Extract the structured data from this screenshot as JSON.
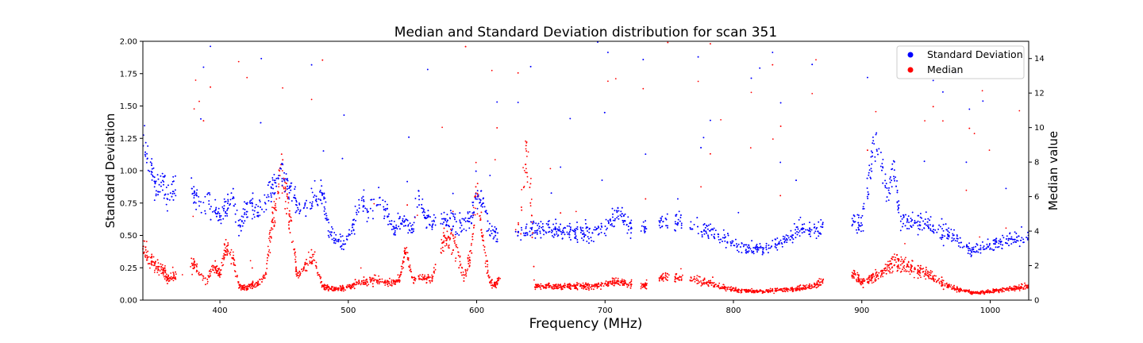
{
  "chart_data": {
    "type": "scatter",
    "title": "Median and Standard Deviation distribution for scan 351",
    "xlabel": "Frequency (MHz)",
    "ylabel_left": "Standard Deviation",
    "ylabel_right": "Median value",
    "xlim": [
      340,
      1030
    ],
    "ylim_left": [
      0,
      2.0
    ],
    "ylim_right": [
      0,
      15
    ],
    "x_ticks": [
      "400",
      "500",
      "600",
      "700",
      "800",
      "900",
      "1000"
    ],
    "y_left_ticks": [
      "0.00",
      "0.25",
      "0.50",
      "0.75",
      "1.00",
      "1.25",
      "1.50",
      "1.75",
      "2.00"
    ],
    "y_right_ticks": [
      "0",
      "2",
      "4",
      "6",
      "8",
      "10",
      "12",
      "14"
    ],
    "grid": false,
    "legend_position": "upper right",
    "series": [
      {
        "name": "Standard Deviation",
        "axis": "left",
        "color": "#0000ff",
        "marker": "dot",
        "profile": [
          [
            340,
            1.25
          ],
          [
            345,
            1.1
          ],
          [
            350,
            0.85
          ],
          [
            355,
            0.9
          ],
          [
            360,
            0.8
          ],
          [
            370,
            0.95
          ],
          [
            380,
            0.78
          ],
          [
            390,
            0.75
          ],
          [
            395,
            0.7
          ],
          [
            400,
            0.65
          ],
          [
            405,
            0.68
          ],
          [
            410,
            0.8
          ],
          [
            415,
            0.55
          ],
          [
            420,
            0.7
          ],
          [
            425,
            0.72
          ],
          [
            430,
            0.7
          ],
          [
            440,
            0.85
          ],
          [
            445,
            0.98
          ],
          [
            450,
            0.95
          ],
          [
            455,
            0.85
          ],
          [
            460,
            0.75
          ],
          [
            465,
            0.7
          ],
          [
            470,
            0.75
          ],
          [
            475,
            0.78
          ],
          [
            480,
            0.85
          ],
          [
            485,
            0.55
          ],
          [
            490,
            0.45
          ],
          [
            495,
            0.45
          ],
          [
            500,
            0.5
          ],
          [
            505,
            0.6
          ],
          [
            510,
            0.75
          ],
          [
            515,
            0.7
          ],
          [
            520,
            0.8
          ],
          [
            525,
            0.75
          ],
          [
            530,
            0.7
          ],
          [
            535,
            0.55
          ],
          [
            540,
            0.6
          ],
          [
            545,
            0.6
          ],
          [
            550,
            0.55
          ],
          [
            555,
            0.8
          ],
          [
            560,
            0.65
          ],
          [
            565,
            0.6
          ],
          [
            590,
            0.6
          ],
          [
            595,
            0.62
          ],
          [
            600,
            0.8
          ],
          [
            605,
            0.75
          ],
          [
            610,
            0.55
          ],
          [
            615,
            0.5
          ],
          [
            645,
            0.55
          ],
          [
            660,
            0.55
          ],
          [
            680,
            0.52
          ],
          [
            700,
            0.55
          ],
          [
            705,
            0.6
          ],
          [
            710,
            0.7
          ],
          [
            720,
            0.55
          ],
          [
            730,
            0.55
          ],
          [
            745,
            0.6
          ],
          [
            757,
            0.6
          ],
          [
            770,
            0.57
          ],
          [
            785,
            0.52
          ],
          [
            800,
            0.45
          ],
          [
            810,
            0.4
          ],
          [
            825,
            0.4
          ],
          [
            840,
            0.45
          ],
          [
            850,
            0.55
          ],
          [
            868,
            0.55
          ],
          [
            895,
            0.6
          ],
          [
            900,
            0.58
          ],
          [
            905,
            0.9
          ],
          [
            910,
            1.25
          ],
          [
            915,
            1.1
          ],
          [
            920,
            0.8
          ],
          [
            925,
            1.0
          ],
          [
            930,
            0.62
          ],
          [
            940,
            0.6
          ],
          [
            950,
            0.6
          ],
          [
            960,
            0.55
          ],
          [
            970,
            0.5
          ],
          [
            980,
            0.4
          ],
          [
            990,
            0.38
          ],
          [
            1000,
            0.42
          ],
          [
            1010,
            0.45
          ],
          [
            1020,
            0.48
          ],
          [
            1030,
            0.5
          ]
        ]
      },
      {
        "name": "Median",
        "axis": "right",
        "color": "#ff0000",
        "marker": "dot",
        "profile": [
          [
            340,
            3.0
          ],
          [
            345,
            2.5
          ],
          [
            350,
            2.0
          ],
          [
            355,
            1.8
          ],
          [
            360,
            1.2
          ],
          [
            380,
            2.0
          ],
          [
            385,
            1.5
          ],
          [
            390,
            1.0
          ],
          [
            395,
            2.0
          ],
          [
            400,
            1.5
          ],
          [
            405,
            3.0
          ],
          [
            410,
            2.5
          ],
          [
            415,
            0.8
          ],
          [
            420,
            0.7
          ],
          [
            430,
            1.0
          ],
          [
            435,
            1.3
          ],
          [
            440,
            4.0
          ],
          [
            445,
            6.5
          ],
          [
            448,
            7.3
          ],
          [
            452,
            6.0
          ],
          [
            455,
            4.5
          ],
          [
            460,
            1.5
          ],
          [
            465,
            1.8
          ],
          [
            470,
            2.5
          ],
          [
            475,
            2.0
          ],
          [
            480,
            0.8
          ],
          [
            490,
            0.6
          ],
          [
            500,
            0.8
          ],
          [
            510,
            1.0
          ],
          [
            520,
            1.2
          ],
          [
            530,
            1.0
          ],
          [
            540,
            1.2
          ],
          [
            545,
            3.0
          ],
          [
            550,
            1.2
          ],
          [
            560,
            1.3
          ],
          [
            565,
            1.2
          ],
          [
            575,
            3.5
          ],
          [
            585,
            3.0
          ],
          [
            590,
            1.3
          ],
          [
            595,
            2.5
          ],
          [
            600,
            6.5
          ],
          [
            605,
            3.5
          ],
          [
            610,
            1.2
          ],
          [
            615,
            0.8
          ],
          [
            635,
            5.0
          ],
          [
            638,
            8.5
          ],
          [
            642,
            6.5
          ],
          [
            645,
            0.8
          ],
          [
            660,
            0.8
          ],
          [
            680,
            0.8
          ],
          [
            700,
            0.9
          ],
          [
            710,
            1.1
          ],
          [
            720,
            0.9
          ],
          [
            730,
            0.8
          ],
          [
            745,
            1.3
          ],
          [
            757,
            1.3
          ],
          [
            770,
            1.2
          ],
          [
            785,
            0.9
          ],
          [
            800,
            0.6
          ],
          [
            820,
            0.5
          ],
          [
            840,
            0.6
          ],
          [
            855,
            0.7
          ],
          [
            868,
            1.0
          ],
          [
            895,
            1.5
          ],
          [
            900,
            1.0
          ],
          [
            905,
            1.2
          ],
          [
            915,
            1.6
          ],
          [
            925,
            2.2
          ],
          [
            935,
            2.0
          ],
          [
            945,
            1.7
          ],
          [
            955,
            1.4
          ],
          [
            965,
            0.9
          ],
          [
            975,
            0.6
          ],
          [
            990,
            0.4
          ],
          [
            1000,
            0.5
          ],
          [
            1010,
            0.6
          ],
          [
            1020,
            0.7
          ],
          [
            1030,
            0.8
          ]
        ]
      }
    ]
  }
}
